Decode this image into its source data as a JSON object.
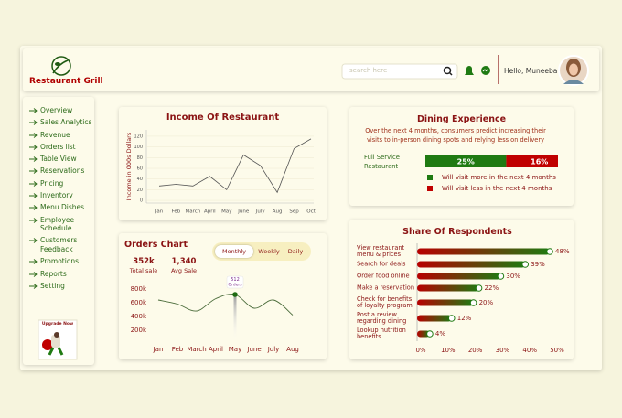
{
  "header": {
    "brand": "Restaurant Grill",
    "search_placeholder": "search here",
    "greeting": "Hello, Muneeba"
  },
  "sidebar": {
    "items": [
      "Overview",
      "Sales Analytics",
      "Revenue",
      "Orders list",
      "Table View",
      "Reservations",
      "Pricing",
      "Inventory",
      "Menu Dishes",
      "Employee Schedule",
      "Customers Feedback",
      "Promotions",
      "Reports",
      "Setting"
    ],
    "upgrade": "Upgrade Now"
  },
  "chart_data": [
    {
      "type": "line",
      "title": "Income Of Restaurant",
      "y_label": "Income in 000s Dollars",
      "categories": [
        "Jan",
        "Feb",
        "March",
        "April",
        "May",
        "June",
        "July",
        "Aug",
        "Sep",
        "Oct"
      ],
      "values": [
        27,
        30,
        27,
        45,
        20,
        85,
        65,
        15,
        97,
        115
      ],
      "color": "#555555",
      "ylim": [
        -5,
        125
      ],
      "yticks": [
        0,
        20,
        40,
        60,
        80,
        100,
        120
      ],
      "grid": true
    },
    {
      "type": "smooth_line",
      "title": "Orders Chart",
      "tabs": [
        "Monthly",
        "Weekly",
        "Daily"
      ],
      "active_tab": "Monthly",
      "stats": [
        {
          "value": "352k",
          "label": "Total sale"
        },
        {
          "value": "1,340",
          "label": "Avg Sale"
        }
      ],
      "categories": [
        "Jan",
        "Feb",
        "March",
        "April",
        "May",
        "June",
        "July",
        "Aug"
      ],
      "values": [
        640000,
        580000,
        480000,
        660000,
        720000,
        520000,
        640000,
        420000
      ],
      "color": "#4a6b3a",
      "ylim": [
        100000,
        900000
      ],
      "yticks": [
        {
          "value": 200000,
          "label": "200k"
        },
        {
          "value": 400000,
          "label": "400k"
        },
        {
          "value": 600000,
          "label": "600k"
        },
        {
          "value": 800000,
          "label": "800k"
        }
      ],
      "annotation": {
        "category": "May",
        "text": "512",
        "subtext": "Orders"
      }
    },
    {
      "type": "stacked_bar",
      "title": "Dining Experience",
      "subtitle": "Over the next 4 months, consumers predict increasing their visits to in-person dining spots and relying less on delivery",
      "category": "Full Service Restaurant",
      "series": [
        {
          "name": "Will visit more in the next 4 months",
          "color": "#1f7a12",
          "values": [
            25
          ],
          "value_labels": [
            "25%"
          ]
        },
        {
          "name": "Will visit less in the next 4 months",
          "color": "#c00000",
          "values": [
            16
          ],
          "value_labels": [
            "16%"
          ]
        }
      ]
    },
    {
      "type": "hbar",
      "title": "Share Of Respondents",
      "categories": [
        "View restaurant menu & prices",
        "Search for deals",
        "Order food online",
        "Make a reservation",
        "Check for benefits of loyalty program",
        "Post a review regarding dining",
        "Lookup nutrition benefits"
      ],
      "values": [
        48,
        39,
        30,
        22,
        20,
        12,
        4
      ],
      "value_labels": [
        "48%",
        "39%",
        "30%",
        "22%",
        "20%",
        "12%",
        "4%"
      ],
      "xlim": [
        0,
        50
      ],
      "xticks": [
        {
          "value": 0,
          "label": "0%"
        },
        {
          "value": 10,
          "label": "10%"
        },
        {
          "value": 20,
          "label": "20%"
        },
        {
          "value": 30,
          "label": "30%"
        },
        {
          "value": 40,
          "label": "40%"
        },
        {
          "value": 50,
          "label": "50%"
        }
      ],
      "color_start": "#b80000",
      "color_end": "#1f7a12"
    }
  ]
}
